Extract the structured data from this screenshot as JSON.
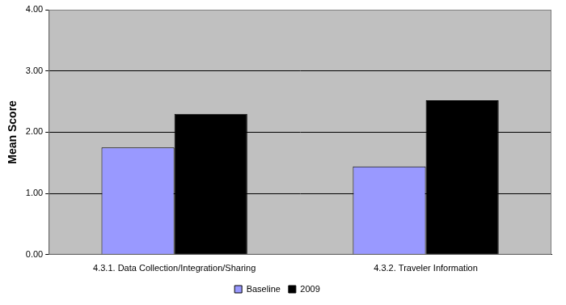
{
  "chart_data": {
    "type": "bar",
    "y_label": "Mean Score",
    "categories": [
      "4.3.1. Data Collection/Integration/Sharing",
      "4.3.2. Traveler Information"
    ],
    "series": [
      {
        "name": "Baseline",
        "color": "#9999ff",
        "values": [
          1.75,
          1.44
        ]
      },
      {
        "name": "2009",
        "color": "#000000",
        "values": [
          2.3,
          2.52
        ]
      }
    ],
    "ylim": [
      0,
      4
    ],
    "yticks": [
      {
        "value": 0,
        "label": "0.00"
      },
      {
        "value": 1,
        "label": "1.00"
      },
      {
        "value": 2,
        "label": "2.00"
      },
      {
        "value": 3,
        "label": "3.00"
      },
      {
        "value": 4,
        "label": "4.00"
      }
    ],
    "grid": true,
    "legend": "bottom"
  }
}
